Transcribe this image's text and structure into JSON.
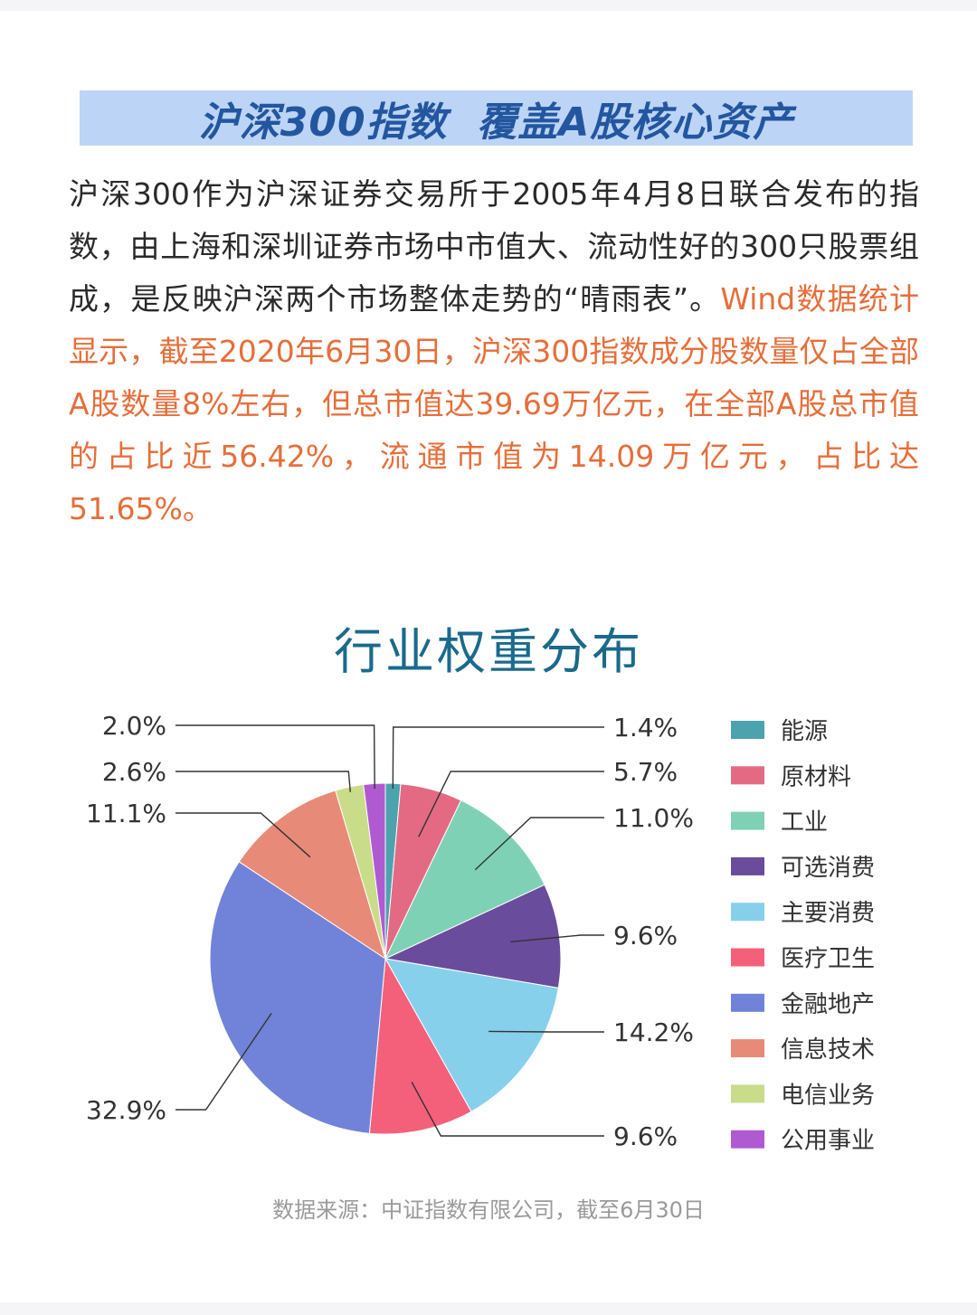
{
  "header": {
    "title": "沪深300指数  覆盖A股核心资产"
  },
  "intro": {
    "text_plain": "沪深300作为沪深证券交易所于2005年4月8日联合发布的指数，由上海和深圳证券市场中市值大、流动性好的300只股票组成，是反映沪深两个市场整体走势的“晴雨表”。",
    "text_highlight": "Wind数据统计显示，截至2020年6月30日，沪深300指数成分股数量仅占全部A股数量8%左右，但总市值达39.69万亿元，在全部A股总市值的占比近56.42%，流通市值为14.09万亿元，占比达51.65%。"
  },
  "chart_data": {
    "type": "pie",
    "title": "行业权重分布",
    "legend_position": "right",
    "slices": [
      {
        "name": "能源",
        "value": 1.4,
        "label": "1.4%",
        "color": "#4ca3ae"
      },
      {
        "name": "原材料",
        "value": 5.7,
        "label": "5.7%",
        "color": "#e46a84"
      },
      {
        "name": "工业",
        "value": 11.0,
        "label": "11.0%",
        "color": "#7fd1b6"
      },
      {
        "name": "可选消费",
        "value": 9.6,
        "label": "9.6%",
        "color": "#6a4c9c"
      },
      {
        "name": "主要消费",
        "value": 14.2,
        "label": "14.2%",
        "color": "#87d0ec"
      },
      {
        "name": "医疗卫生",
        "value": 9.6,
        "label": "9.6%",
        "color": "#f4607a"
      },
      {
        "name": "金融地产",
        "value": 32.9,
        "label": "32.9%",
        "color": "#7183d8"
      },
      {
        "name": "信息技术",
        "value": 11.1,
        "label": "11.1%",
        "color": "#e88a78"
      },
      {
        "name": "电信业务",
        "value": 2.6,
        "label": "2.6%",
        "color": "#c8dc8a"
      },
      {
        "name": "公用事业",
        "value": 2.0,
        "label": "2.0%",
        "color": "#b05ad2"
      }
    ]
  },
  "footer": {
    "source": "数据来源：中证指数有限公司，截至6月30日"
  }
}
